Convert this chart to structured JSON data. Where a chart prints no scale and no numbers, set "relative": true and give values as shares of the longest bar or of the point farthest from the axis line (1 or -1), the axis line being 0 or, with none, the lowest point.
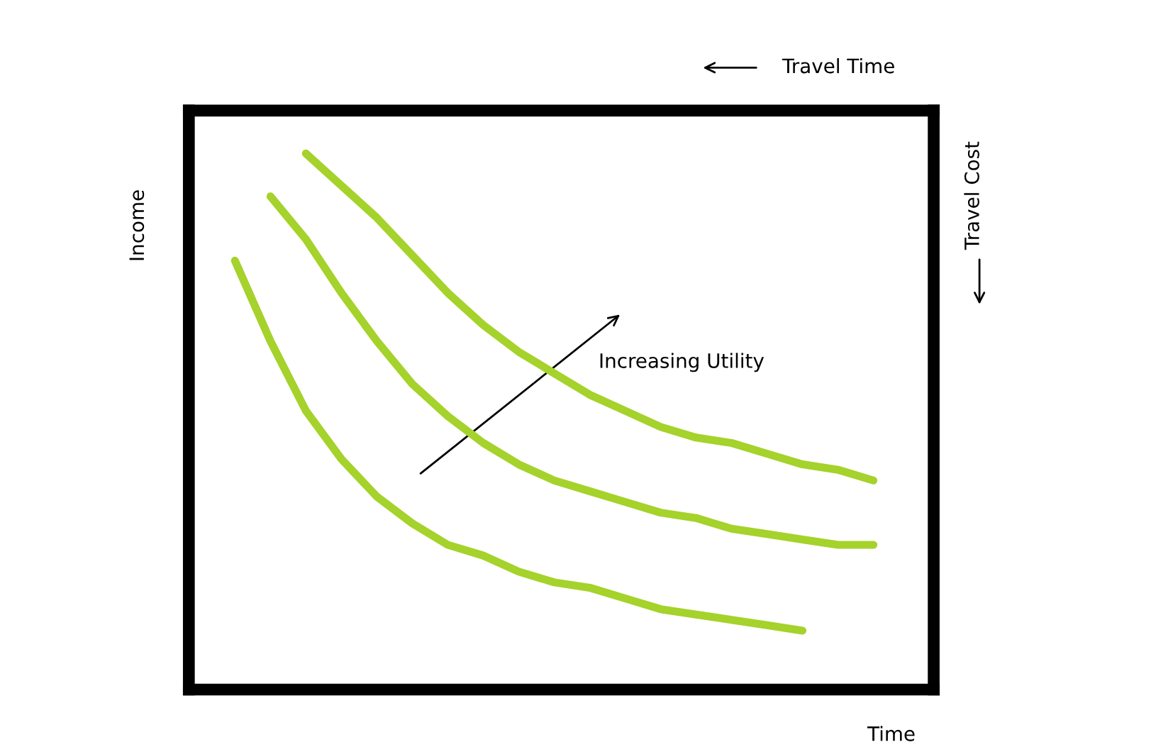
{
  "chart_data": {
    "type": "line",
    "relative": true,
    "xlabel": "Time",
    "ylabel": "Income",
    "x2label": "Travel Time",
    "y2label": "Travel Cost",
    "annotations": [
      "Increasing Utility"
    ],
    "categories": [
      null,
      null,
      null,
      null,
      null,
      null,
      null,
      null,
      null,
      null,
      null,
      null,
      null,
      null,
      null,
      null,
      null,
      null,
      null,
      null,
      null
    ],
    "series": [
      {
        "color": "#a5d22b",
        "values": [
          null,
          0.8,
          0.65,
          0.52,
          0.43,
          0.36,
          0.31,
          0.27,
          0.25,
          0.22,
          0.2,
          0.19,
          0.17,
          0.15,
          0.14,
          0.13,
          0.12,
          0.11,
          null,
          null,
          null
        ]
      },
      {
        "color": "#a5d22b",
        "values": [
          null,
          null,
          0.92,
          0.84,
          0.74,
          0.65,
          0.57,
          0.51,
          0.46,
          0.42,
          0.39,
          0.37,
          0.35,
          0.33,
          0.32,
          0.3,
          0.29,
          0.28,
          0.27,
          0.27,
          null
        ]
      },
      {
        "color": "#a5d22b",
        "values": [
          null,
          null,
          null,
          1,
          0.94,
          0.88,
          0.81,
          0.74,
          0.68,
          0.63,
          0.59,
          0.55,
          0.52,
          0.49,
          0.47,
          0.46,
          0.44,
          0.42,
          0.41,
          0.39,
          null
        ]
      }
    ],
    "legend": false,
    "marker": "none",
    "line_style": "solid"
  }
}
